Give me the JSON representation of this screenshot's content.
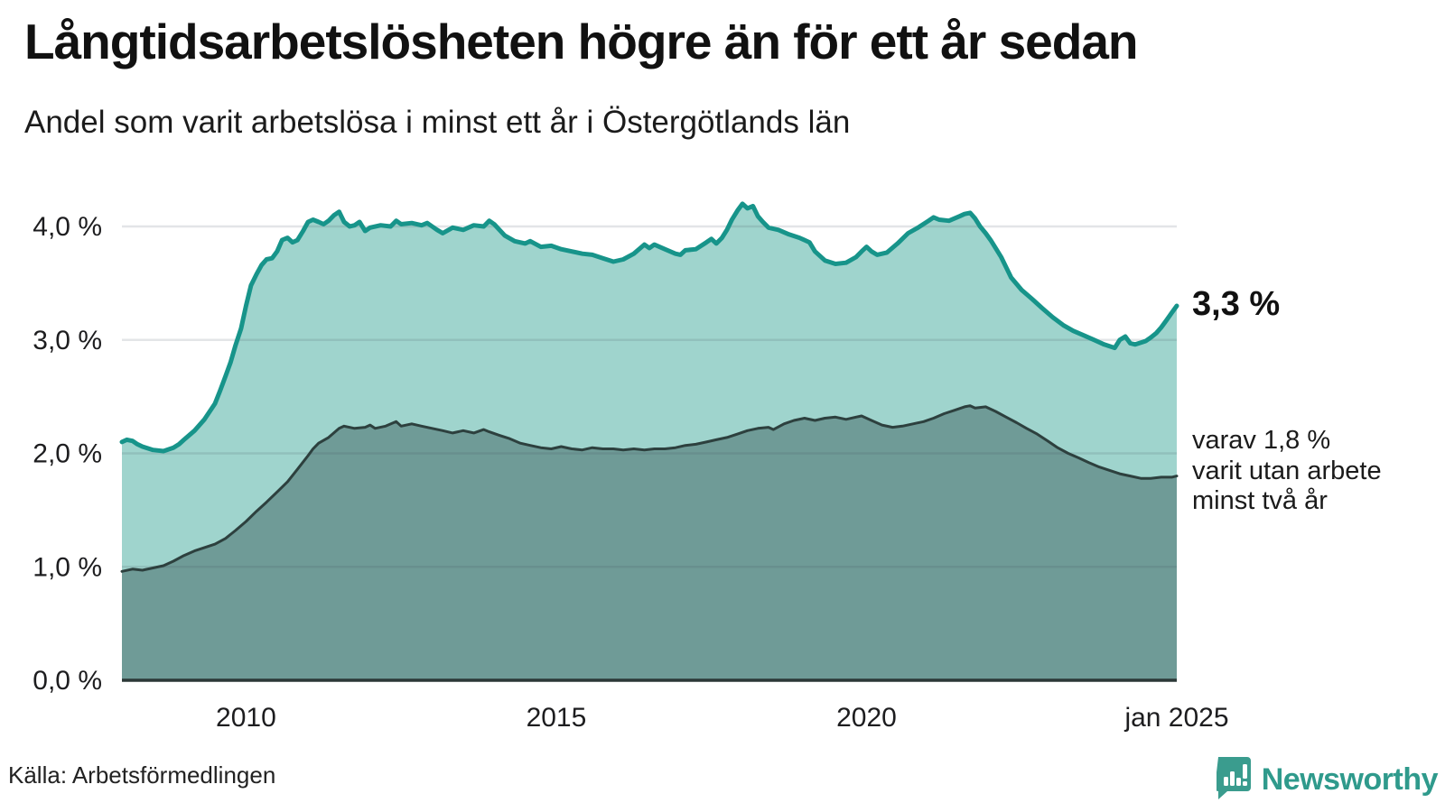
{
  "header": {
    "title": "Långtidsarbetslösheten högre än för ett år sedan",
    "subtitle": "Andel som varit arbetslösa i minst ett år i Östergötlands län"
  },
  "annotations": {
    "end_value_label": "3,3 %",
    "secondary": {
      "lines": [
        "varav 1,8 %",
        "varit utan arbete",
        "minst två år"
      ]
    }
  },
  "footer": {
    "source": "Källa: Arbetsförmedlingen",
    "brand": "Newsworthy",
    "brand_color": "#2f9a8c",
    "logo_icon": "bar-chart-speech-bubble-icon"
  },
  "chart_data": {
    "type": "area",
    "title": "Långtidsarbetslösheten högre än för ett år sedan",
    "subtitle": "Andel som varit arbetslösa i minst ett år i Östergötlands län",
    "grid": true,
    "legend_position": "right-annotations",
    "x_axis": {
      "range": [
        2008,
        2025
      ],
      "ticks": [
        {
          "x": 2010,
          "label": "2010"
        },
        {
          "x": 2015,
          "label": "2015"
        },
        {
          "x": 2020,
          "label": "2020"
        },
        {
          "x": 2025,
          "label": "jan 2025"
        }
      ]
    },
    "y_axis": {
      "unit": "%",
      "range": [
        0,
        4.35
      ],
      "ticks": [
        {
          "v": 0,
          "label": "0,0 %"
        },
        {
          "v": 1,
          "label": "1,0 %"
        },
        {
          "v": 2,
          "label": "2,0 %"
        },
        {
          "v": 3,
          "label": "3,0 %"
        },
        {
          "v": 4,
          "label": "4,0 %"
        }
      ]
    },
    "colors": {
      "series1_line": "#17948a",
      "series1_fill": "#9fd4cd",
      "series2_line": "#2d403e",
      "series2_fill": "#6f9b97",
      "gridline": "rgba(70,80,95,0.15)",
      "axis_line": "#2b3837"
    },
    "series": [
      {
        "name": "Andel som varit arbetslösa i minst ett år",
        "end_value": 3.3,
        "points": [
          [
            2008.0,
            2.1
          ],
          [
            2008.08,
            2.12
          ],
          [
            2008.17,
            2.11
          ],
          [
            2008.25,
            2.08
          ],
          [
            2008.33,
            2.06
          ],
          [
            2008.5,
            2.03
          ],
          [
            2008.67,
            2.02
          ],
          [
            2008.83,
            2.05
          ],
          [
            2008.92,
            2.08
          ],
          [
            2009.0,
            2.12
          ],
          [
            2009.17,
            2.2
          ],
          [
            2009.33,
            2.3
          ],
          [
            2009.5,
            2.44
          ],
          [
            2009.58,
            2.55
          ],
          [
            2009.67,
            2.68
          ],
          [
            2009.75,
            2.8
          ],
          [
            2009.83,
            2.95
          ],
          [
            2009.92,
            3.1
          ],
          [
            2010.0,
            3.3
          ],
          [
            2010.08,
            3.48
          ],
          [
            2010.17,
            3.58
          ],
          [
            2010.25,
            3.66
          ],
          [
            2010.33,
            3.71
          ],
          [
            2010.42,
            3.72
          ],
          [
            2010.5,
            3.78
          ],
          [
            2010.58,
            3.88
          ],
          [
            2010.67,
            3.9
          ],
          [
            2010.75,
            3.86
          ],
          [
            2010.83,
            3.88
          ],
          [
            2010.92,
            3.96
          ],
          [
            2011.0,
            4.04
          ],
          [
            2011.08,
            4.06
          ],
          [
            2011.17,
            4.04
          ],
          [
            2011.25,
            4.02
          ],
          [
            2011.33,
            4.05
          ],
          [
            2011.42,
            4.1
          ],
          [
            2011.5,
            4.13
          ],
          [
            2011.58,
            4.04
          ],
          [
            2011.67,
            4.0
          ],
          [
            2011.75,
            4.01
          ],
          [
            2011.83,
            4.04
          ],
          [
            2011.92,
            3.96
          ],
          [
            2012.0,
            3.99
          ],
          [
            2012.17,
            4.01
          ],
          [
            2012.33,
            4.0
          ],
          [
            2012.42,
            4.05
          ],
          [
            2012.5,
            4.02
          ],
          [
            2012.67,
            4.03
          ],
          [
            2012.83,
            4.01
          ],
          [
            2012.92,
            4.03
          ],
          [
            2013.0,
            4.0
          ],
          [
            2013.08,
            3.97
          ],
          [
            2013.17,
            3.94
          ],
          [
            2013.33,
            3.99
          ],
          [
            2013.5,
            3.97
          ],
          [
            2013.67,
            4.01
          ],
          [
            2013.83,
            4.0
          ],
          [
            2013.92,
            4.05
          ],
          [
            2014.0,
            4.02
          ],
          [
            2014.17,
            3.92
          ],
          [
            2014.33,
            3.87
          ],
          [
            2014.5,
            3.85
          ],
          [
            2014.58,
            3.87
          ],
          [
            2014.75,
            3.82
          ],
          [
            2014.92,
            3.83
          ],
          [
            2015.08,
            3.8
          ],
          [
            2015.25,
            3.78
          ],
          [
            2015.42,
            3.76
          ],
          [
            2015.58,
            3.75
          ],
          [
            2015.75,
            3.72
          ],
          [
            2015.92,
            3.69
          ],
          [
            2016.08,
            3.71
          ],
          [
            2016.25,
            3.76
          ],
          [
            2016.42,
            3.84
          ],
          [
            2016.5,
            3.81
          ],
          [
            2016.58,
            3.84
          ],
          [
            2016.75,
            3.8
          ],
          [
            2016.92,
            3.76
          ],
          [
            2017.0,
            3.75
          ],
          [
            2017.08,
            3.79
          ],
          [
            2017.25,
            3.8
          ],
          [
            2017.42,
            3.86
          ],
          [
            2017.5,
            3.89
          ],
          [
            2017.58,
            3.85
          ],
          [
            2017.67,
            3.9
          ],
          [
            2017.75,
            3.97
          ],
          [
            2017.83,
            4.06
          ],
          [
            2017.92,
            4.14
          ],
          [
            2018.0,
            4.2
          ],
          [
            2018.08,
            4.16
          ],
          [
            2018.17,
            4.18
          ],
          [
            2018.25,
            4.09
          ],
          [
            2018.33,
            4.04
          ],
          [
            2018.42,
            3.99
          ],
          [
            2018.58,
            3.97
          ],
          [
            2018.75,
            3.93
          ],
          [
            2018.92,
            3.9
          ],
          [
            2019.08,
            3.86
          ],
          [
            2019.17,
            3.78
          ],
          [
            2019.33,
            3.7
          ],
          [
            2019.5,
            3.67
          ],
          [
            2019.67,
            3.68
          ],
          [
            2019.83,
            3.73
          ],
          [
            2019.92,
            3.78
          ],
          [
            2020.0,
            3.82
          ],
          [
            2020.08,
            3.78
          ],
          [
            2020.17,
            3.75
          ],
          [
            2020.33,
            3.77
          ],
          [
            2020.5,
            3.85
          ],
          [
            2020.67,
            3.94
          ],
          [
            2020.83,
            3.99
          ],
          [
            2021.0,
            4.05
          ],
          [
            2021.08,
            4.08
          ],
          [
            2021.17,
            4.06
          ],
          [
            2021.33,
            4.05
          ],
          [
            2021.5,
            4.09
          ],
          [
            2021.58,
            4.11
          ],
          [
            2021.67,
            4.12
          ],
          [
            2021.75,
            4.07
          ],
          [
            2021.83,
            4.0
          ],
          [
            2021.92,
            3.94
          ],
          [
            2022.0,
            3.88
          ],
          [
            2022.08,
            3.81
          ],
          [
            2022.17,
            3.73
          ],
          [
            2022.25,
            3.64
          ],
          [
            2022.33,
            3.55
          ],
          [
            2022.5,
            3.44
          ],
          [
            2022.67,
            3.36
          ],
          [
            2022.83,
            3.28
          ],
          [
            2023.0,
            3.2
          ],
          [
            2023.17,
            3.13
          ],
          [
            2023.33,
            3.08
          ],
          [
            2023.5,
            3.04
          ],
          [
            2023.67,
            3.0
          ],
          [
            2023.83,
            2.96
          ],
          [
            2024.0,
            2.93
          ],
          [
            2024.08,
            3.0
          ],
          [
            2024.17,
            3.03
          ],
          [
            2024.25,
            2.97
          ],
          [
            2024.33,
            2.96
          ],
          [
            2024.5,
            2.99
          ],
          [
            2024.58,
            3.02
          ],
          [
            2024.67,
            3.06
          ],
          [
            2024.75,
            3.11
          ],
          [
            2024.83,
            3.17
          ],
          [
            2024.92,
            3.24
          ],
          [
            2025.0,
            3.3
          ]
        ]
      },
      {
        "name": "varav varit utan arbete minst två år",
        "end_value": 1.8,
        "points": [
          [
            2008.0,
            0.96
          ],
          [
            2008.17,
            0.98
          ],
          [
            2008.33,
            0.97
          ],
          [
            2008.5,
            0.99
          ],
          [
            2008.67,
            1.01
          ],
          [
            2008.83,
            1.05
          ],
          [
            2009.0,
            1.1
          ],
          [
            2009.17,
            1.14
          ],
          [
            2009.33,
            1.17
          ],
          [
            2009.5,
            1.2
          ],
          [
            2009.67,
            1.25
          ],
          [
            2009.83,
            1.32
          ],
          [
            2010.0,
            1.4
          ],
          [
            2010.17,
            1.49
          ],
          [
            2010.33,
            1.57
          ],
          [
            2010.5,
            1.66
          ],
          [
            2010.67,
            1.75
          ],
          [
            2010.83,
            1.86
          ],
          [
            2011.0,
            1.98
          ],
          [
            2011.08,
            2.04
          ],
          [
            2011.17,
            2.09
          ],
          [
            2011.33,
            2.14
          ],
          [
            2011.5,
            2.22
          ],
          [
            2011.58,
            2.24
          ],
          [
            2011.75,
            2.22
          ],
          [
            2011.92,
            2.23
          ],
          [
            2012.0,
            2.25
          ],
          [
            2012.08,
            2.22
          ],
          [
            2012.25,
            2.24
          ],
          [
            2012.42,
            2.28
          ],
          [
            2012.5,
            2.24
          ],
          [
            2012.67,
            2.26
          ],
          [
            2012.83,
            2.24
          ],
          [
            2013.0,
            2.22
          ],
          [
            2013.17,
            2.2
          ],
          [
            2013.33,
            2.18
          ],
          [
            2013.5,
            2.2
          ],
          [
            2013.67,
            2.18
          ],
          [
            2013.83,
            2.21
          ],
          [
            2013.92,
            2.19
          ],
          [
            2014.08,
            2.16
          ],
          [
            2014.25,
            2.13
          ],
          [
            2014.42,
            2.09
          ],
          [
            2014.58,
            2.07
          ],
          [
            2014.75,
            2.05
          ],
          [
            2014.92,
            2.04
          ],
          [
            2015.08,
            2.06
          ],
          [
            2015.25,
            2.04
          ],
          [
            2015.42,
            2.03
          ],
          [
            2015.58,
            2.05
          ],
          [
            2015.75,
            2.04
          ],
          [
            2015.92,
            2.04
          ],
          [
            2016.08,
            2.03
          ],
          [
            2016.25,
            2.04
          ],
          [
            2016.42,
            2.03
          ],
          [
            2016.58,
            2.04
          ],
          [
            2016.75,
            2.04
          ],
          [
            2016.92,
            2.05
          ],
          [
            2017.08,
            2.07
          ],
          [
            2017.25,
            2.08
          ],
          [
            2017.42,
            2.1
          ],
          [
            2017.58,
            2.12
          ],
          [
            2017.75,
            2.14
          ],
          [
            2017.92,
            2.17
          ],
          [
            2018.08,
            2.2
          ],
          [
            2018.25,
            2.22
          ],
          [
            2018.42,
            2.23
          ],
          [
            2018.5,
            2.21
          ],
          [
            2018.67,
            2.26
          ],
          [
            2018.83,
            2.29
          ],
          [
            2019.0,
            2.31
          ],
          [
            2019.17,
            2.29
          ],
          [
            2019.33,
            2.31
          ],
          [
            2019.5,
            2.32
          ],
          [
            2019.67,
            2.3
          ],
          [
            2019.83,
            2.32
          ],
          [
            2019.92,
            2.33
          ],
          [
            2020.08,
            2.29
          ],
          [
            2020.25,
            2.25
          ],
          [
            2020.42,
            2.23
          ],
          [
            2020.58,
            2.24
          ],
          [
            2020.75,
            2.26
          ],
          [
            2020.92,
            2.28
          ],
          [
            2021.08,
            2.31
          ],
          [
            2021.25,
            2.35
          ],
          [
            2021.42,
            2.38
          ],
          [
            2021.58,
            2.41
          ],
          [
            2021.67,
            2.42
          ],
          [
            2021.75,
            2.4
          ],
          [
            2021.92,
            2.41
          ],
          [
            2022.08,
            2.37
          ],
          [
            2022.25,
            2.32
          ],
          [
            2022.42,
            2.27
          ],
          [
            2022.58,
            2.22
          ],
          [
            2022.75,
            2.17
          ],
          [
            2022.92,
            2.11
          ],
          [
            2023.08,
            2.05
          ],
          [
            2023.25,
            2.0
          ],
          [
            2023.42,
            1.96
          ],
          [
            2023.58,
            1.92
          ],
          [
            2023.75,
            1.88
          ],
          [
            2023.92,
            1.85
          ],
          [
            2024.08,
            1.82
          ],
          [
            2024.25,
            1.8
          ],
          [
            2024.42,
            1.78
          ],
          [
            2024.58,
            1.78
          ],
          [
            2024.75,
            1.79
          ],
          [
            2024.92,
            1.79
          ],
          [
            2025.0,
            1.8
          ]
        ]
      }
    ]
  }
}
